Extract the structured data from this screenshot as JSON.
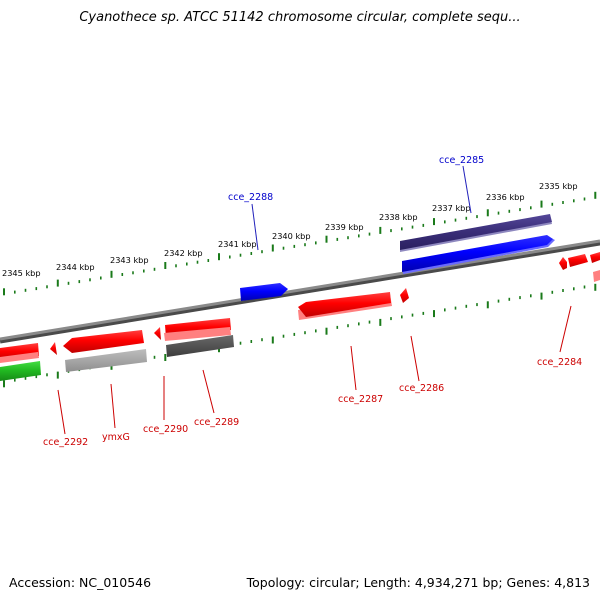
{
  "title": "Cyanothece sp. ATCC 51142 chromosome circular, complete sequ...",
  "accession": "Accession: NC_010546",
  "stats": "Topology: circular; Length: 4,934,271 bp; Genes: 4,813",
  "colors": {
    "backbone": "#7f7f7f",
    "tick": "#1a7a1a",
    "red_gene": "#ff0000",
    "blue_gene": "#0000ff",
    "purple_gene": "#3b2f7a",
    "gray_gene": "#555555",
    "lightgray_gene": "#aaaaaa",
    "green_gene": "#22bb22",
    "red_label": "#cc0000",
    "blue_label": "#0000cc"
  },
  "scale_labels": [
    "2345 kbp",
    "2344 kbp",
    "2343 kbp",
    "2342 kbp",
    "2341 kbp",
    "2340 kbp",
    "2339 kbp",
    "2338 kbp",
    "2337 kbp",
    "2336 kbp",
    "2335 kbp"
  ],
  "gene_labels": {
    "cce_2285": "cce_2285",
    "cce_2288": "cce_2288",
    "cce_2284": "cce_2284",
    "cce_2286": "cce_2286",
    "cce_2287": "cce_2287",
    "cce_2289": "cce_2289",
    "cce_2290": "cce_2290",
    "ymxG": "ymxG",
    "cce_2292": "cce_2292"
  }
}
